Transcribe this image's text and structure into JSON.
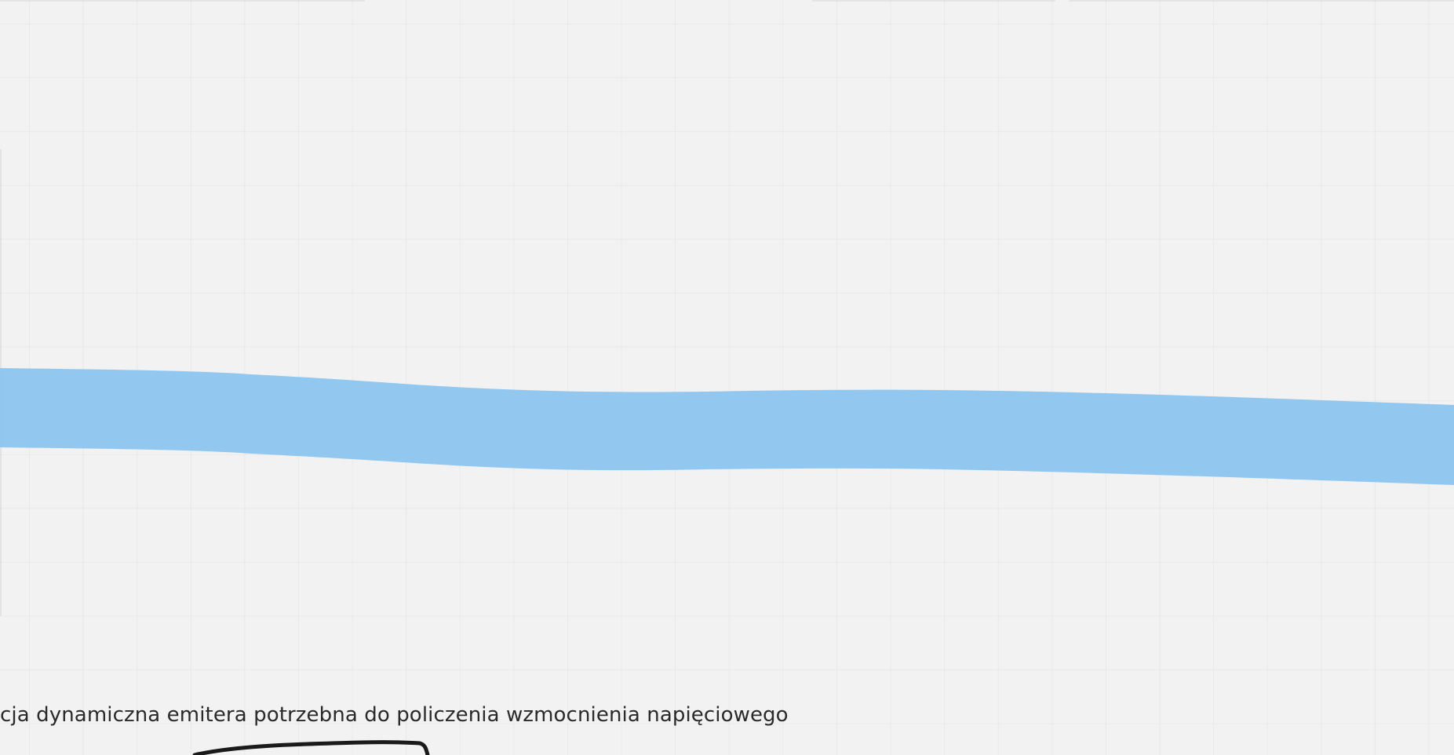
{
  "canvas": {
    "background_color": "#f2f2f2",
    "grid_color": "#e6e6e6"
  },
  "highlighter": {
    "color": "#8ec6f0"
  },
  "note": {
    "text": "cja dynamiczna emitera potrzebna do policzenia wzmocnienia napięciowego",
    "color": "#2a2a2a"
  },
  "pen_stroke": {
    "color": "#1a1a1a"
  }
}
